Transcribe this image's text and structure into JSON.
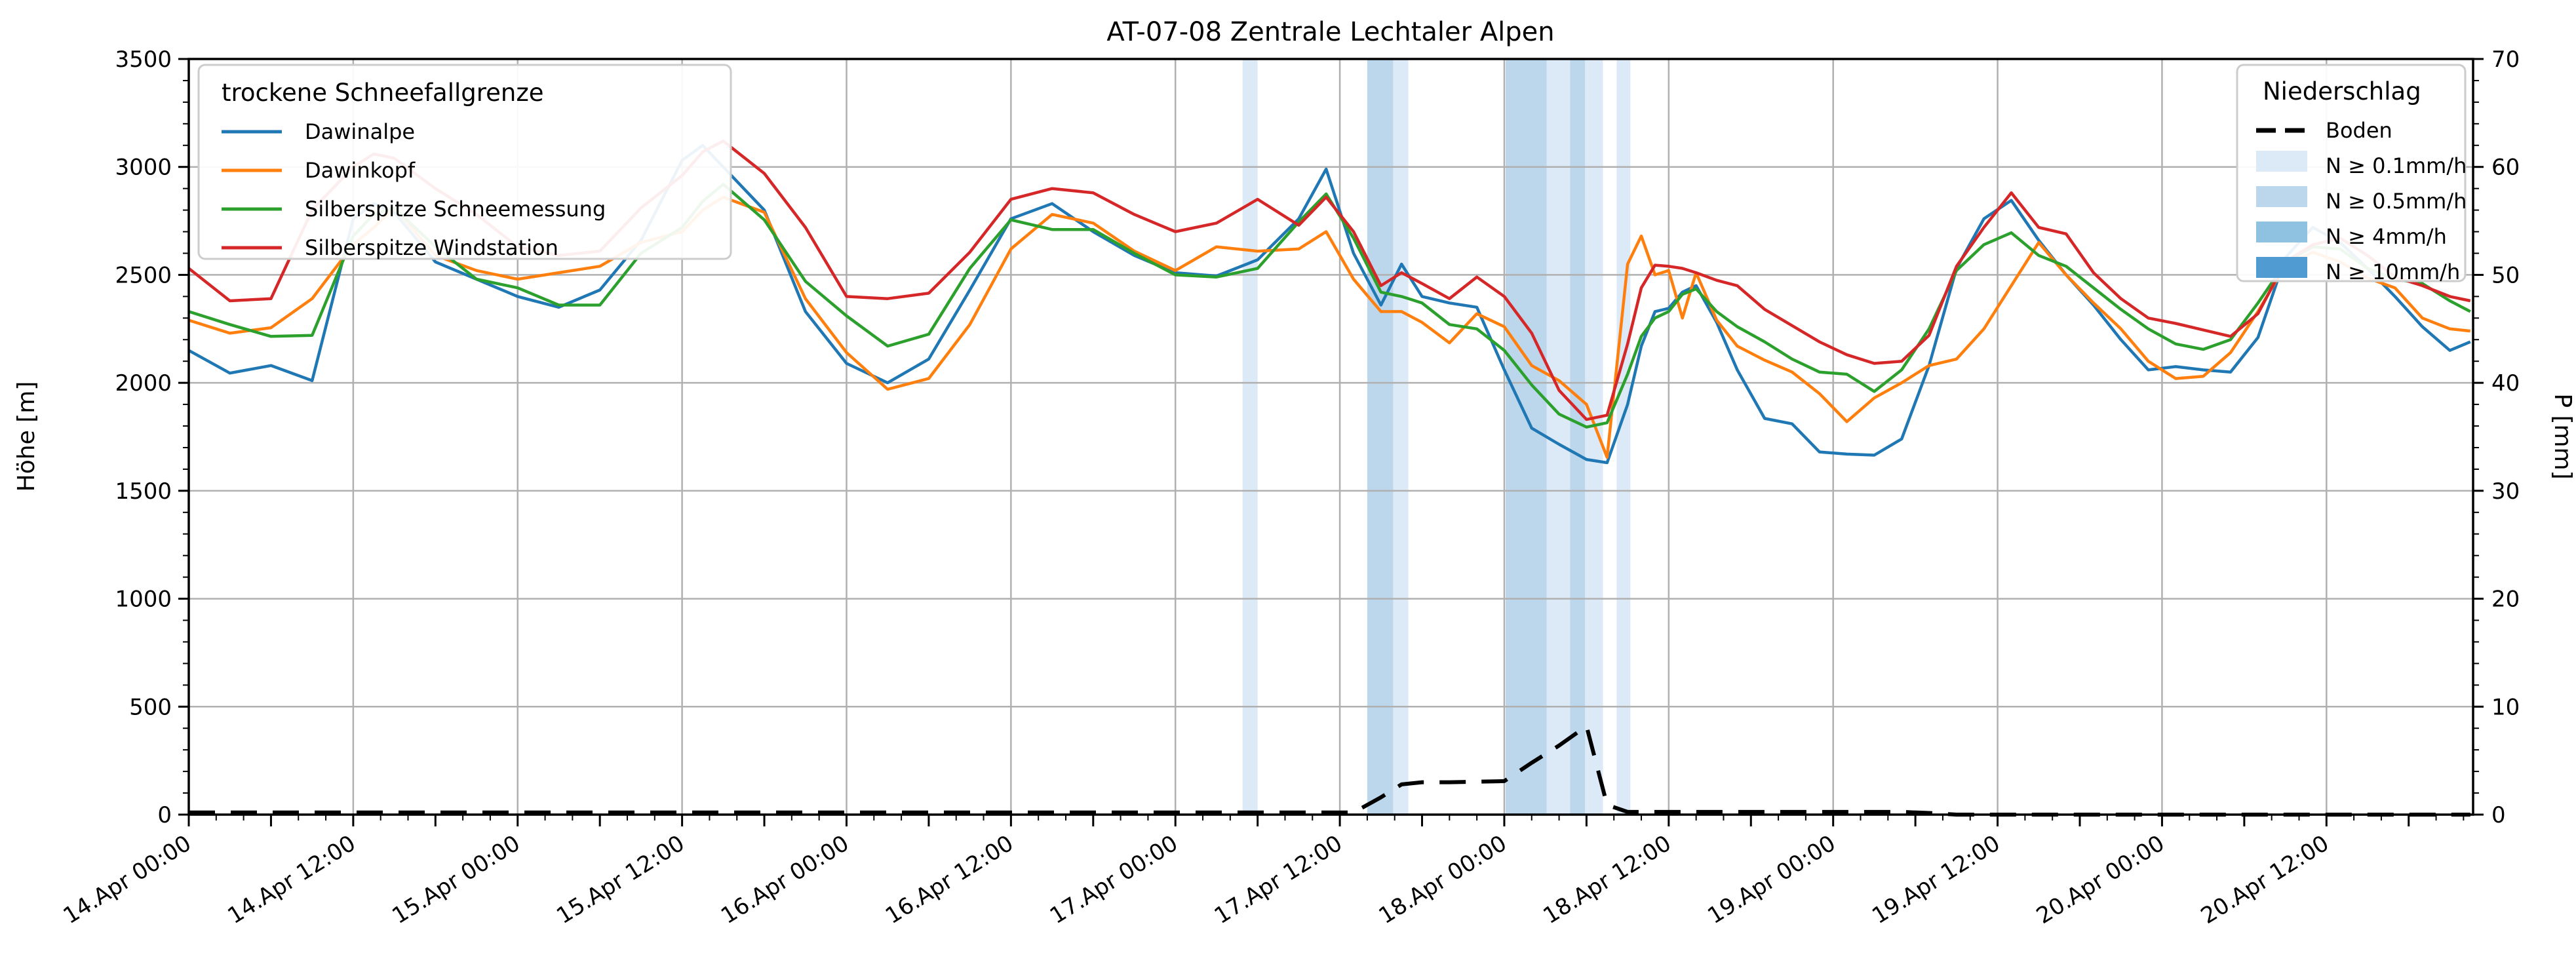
{
  "title": "AT-07-08 Zentrale Lechtaler Alpen",
  "legends": {
    "snowline": {
      "title": "trockene Schneefallgrenze",
      "items": [
        {
          "label": "Dawinalpe",
          "color": "#1f77b4"
        },
        {
          "label": "Dawinkopf",
          "color": "#ff7f0e"
        },
        {
          "label": "Silberspitze Schneemessung",
          "color": "#2ca02c"
        },
        {
          "label": "Silberspitze Windstation",
          "color": "#d62728"
        }
      ]
    },
    "precip": {
      "title": "Niederschlag",
      "items": [
        {
          "label": "Boden",
          "type": "dashed-line",
          "color": "#000000"
        },
        {
          "label": "N ≥ 0.1mm/h",
          "type": "patch",
          "color": "#dce9f6"
        },
        {
          "label": "N ≥ 0.5mm/h",
          "type": "patch",
          "color": "#bcd7ec"
        },
        {
          "label": "N ≥ 4mm/h",
          "type": "patch",
          "color": "#8fc2e0"
        },
        {
          "label": "N ≥ 10mm/h",
          "type": "patch",
          "color": "#4f9bd2"
        }
      ]
    }
  },
  "chart_data": {
    "type": "line",
    "title": "AT-07-08 Zentrale Lechtaler Alpen",
    "ylabel_left": "Höhe [m]",
    "ylabel_right": "P [mm]",
    "ylim_left": [
      0,
      3500
    ],
    "ylim_right": [
      0,
      70
    ],
    "xlim_hours": [
      0,
      166.7
    ],
    "grid": true,
    "x_unit": "hours since 14.Apr 00:00",
    "yticks_left": [
      0,
      500,
      1000,
      1500,
      2000,
      2500,
      3000,
      3500
    ],
    "yticks_right": [
      0,
      10,
      20,
      30,
      40,
      50,
      60,
      70
    ],
    "xticks": [
      {
        "t": 0,
        "label": "14.Apr 00:00"
      },
      {
        "t": 12,
        "label": "14.Apr 12:00"
      },
      {
        "t": 24,
        "label": "15.Apr 00:00"
      },
      {
        "t": 36,
        "label": "15.Apr 12:00"
      },
      {
        "t": 48,
        "label": "16.Apr 00:00"
      },
      {
        "t": 60,
        "label": "16.Apr 12:00"
      },
      {
        "t": 72,
        "label": "17.Apr 00:00"
      },
      {
        "t": 84,
        "label": "17.Apr 12:00"
      },
      {
        "t": 96,
        "label": "18.Apr 00:00"
      },
      {
        "t": 108,
        "label": "18.Apr 12:00"
      },
      {
        "t": 120,
        "label": "19.Apr 00:00"
      },
      {
        "t": 132,
        "label": "19.Apr 12:00"
      },
      {
        "t": 144,
        "label": "20.Apr 00:00"
      },
      {
        "t": 156,
        "label": "20.Apr 12:00"
      }
    ],
    "x": [
      0,
      3,
      6,
      9,
      12,
      13.5,
      15,
      18,
      21,
      24,
      27,
      30,
      33,
      36,
      37.5,
      39,
      42,
      45,
      48,
      51,
      54,
      57,
      60,
      63,
      66,
      69,
      72,
      75,
      78,
      81,
      83,
      85,
      87,
      88.5,
      90,
      92,
      94,
      96,
      98,
      100,
      102,
      103.5,
      105,
      106,
      107,
      108,
      109,
      110,
      111.5,
      113,
      115,
      117,
      119,
      121,
      123,
      125,
      127,
      129,
      131,
      133,
      135,
      137,
      139,
      141,
      143,
      145,
      147,
      149,
      151,
      153,
      155,
      157,
      159,
      161,
      163,
      165,
      166.5
    ],
    "series": [
      {
        "name": "Dawinalpe",
        "color": "#1f77b4",
        "axis": "left",
        "style": "solid",
        "values": [
          2150,
          2045,
          2080,
          2010,
          2760,
          2830,
          2790,
          2560,
          2480,
          2400,
          2350,
          2430,
          2660,
          3030,
          3100,
          3000,
          2800,
          2330,
          2090,
          2000,
          2110,
          2430,
          2760,
          2830,
          2700,
          2590,
          2510,
          2495,
          2570,
          2760,
          2990,
          2600,
          2360,
          2550,
          2400,
          2370,
          2350,
          2060,
          1790,
          1715,
          1645,
          1630,
          1900,
          2170,
          2330,
          2345,
          2420,
          2450,
          2280,
          2060,
          1835,
          1810,
          1680,
          1670,
          1665,
          1740,
          2080,
          2530,
          2760,
          2845,
          2660,
          2500,
          2360,
          2200,
          2060,
          2075,
          2060,
          2050,
          2210,
          2580,
          2720,
          2650,
          2530,
          2400,
          2260,
          2150,
          2190
        ]
      },
      {
        "name": "Dawinkopf",
        "color": "#ff7f0e",
        "axis": "left",
        "style": "solid",
        "values": [
          2290,
          2230,
          2255,
          2390,
          2640,
          2720,
          2810,
          2590,
          2520,
          2480,
          2510,
          2540,
          2650,
          2700,
          2800,
          2860,
          2790,
          2390,
          2140,
          1970,
          2020,
          2270,
          2620,
          2780,
          2740,
          2610,
          2520,
          2630,
          2610,
          2620,
          2700,
          2480,
          2330,
          2330,
          2280,
          2185,
          2320,
          2260,
          2080,
          2010,
          1900,
          1655,
          2550,
          2680,
          2500,
          2520,
          2300,
          2510,
          2290,
          2170,
          2105,
          2050,
          1950,
          1820,
          1930,
          2000,
          2080,
          2110,
          2250,
          2450,
          2650,
          2500,
          2370,
          2250,
          2100,
          2020,
          2030,
          2140,
          2330,
          2545,
          2605,
          2560,
          2485,
          2440,
          2300,
          2250,
          2240
        ]
      },
      {
        "name": "Silberspitze Schneemessung",
        "color": "#2ca02c",
        "axis": "left",
        "style": "solid",
        "values": [
          2330,
          2270,
          2215,
          2220,
          2680,
          2780,
          2810,
          2630,
          2480,
          2440,
          2360,
          2360,
          2600,
          2720,
          2840,
          2920,
          2755,
          2470,
          2310,
          2170,
          2225,
          2530,
          2755,
          2710,
          2710,
          2600,
          2500,
          2490,
          2530,
          2745,
          2875,
          2670,
          2420,
          2400,
          2370,
          2270,
          2250,
          2150,
          1990,
          1855,
          1795,
          1815,
          2040,
          2215,
          2300,
          2330,
          2410,
          2435,
          2330,
          2260,
          2190,
          2110,
          2050,
          2040,
          1960,
          2060,
          2250,
          2520,
          2640,
          2695,
          2590,
          2540,
          2440,
          2340,
          2250,
          2180,
          2155,
          2200,
          2370,
          2555,
          2630,
          2620,
          2530,
          2480,
          2460,
          2380,
          2330
        ]
      },
      {
        "name": "Silberspitze Windstation",
        "color": "#d62728",
        "axis": "left",
        "style": "solid",
        "values": [
          2530,
          2380,
          2390,
          2800,
          3000,
          3060,
          3040,
          2900,
          2780,
          2630,
          2590,
          2610,
          2810,
          2960,
          3070,
          3120,
          2970,
          2720,
          2400,
          2390,
          2415,
          2605,
          2850,
          2900,
          2880,
          2780,
          2700,
          2740,
          2850,
          2730,
          2860,
          2700,
          2450,
          2510,
          2460,
          2390,
          2490,
          2400,
          2230,
          1965,
          1830,
          1850,
          2180,
          2440,
          2545,
          2540,
          2530,
          2510,
          2475,
          2450,
          2340,
          2265,
          2190,
          2130,
          2090,
          2100,
          2220,
          2540,
          2720,
          2880,
          2720,
          2690,
          2510,
          2390,
          2300,
          2275,
          2245,
          2215,
          2320,
          2560,
          2640,
          2670,
          2590,
          2490,
          2450,
          2400,
          2380
        ]
      },
      {
        "name": "Boden",
        "color": "#000000",
        "axis": "right",
        "style": "dashed",
        "values": [
          0.2,
          0.2,
          0.2,
          0.2,
          0.2,
          0.2,
          0.2,
          0.2,
          0.2,
          0.2,
          0.2,
          0.2,
          0.2,
          0.2,
          0.2,
          0.2,
          0.2,
          0.2,
          0.2,
          0.2,
          0.2,
          0.2,
          0.2,
          0.2,
          0.2,
          0.2,
          0.2,
          0.2,
          0.2,
          0.2,
          0.2,
          0.2,
          1.6,
          2.8,
          3.0,
          3.0,
          3.05,
          3.1,
          4.8,
          6.4,
          8.2,
          0.9,
          0.25,
          0.25,
          0.25,
          0.25,
          0.25,
          0.25,
          0.25,
          0.25,
          0.25,
          0.25,
          0.25,
          0.25,
          0.25,
          0.25,
          0.15,
          0,
          0,
          0,
          0,
          0,
          0,
          0,
          0,
          0,
          0,
          0,
          0,
          0,
          0,
          0,
          0,
          0,
          0,
          0,
          0
        ]
      }
    ],
    "precip_bands": [
      {
        "t_start": 76.9,
        "t_end": 78.0,
        "level": "N ≥ 0.1mm/h"
      },
      {
        "t_start": 86.0,
        "t_end": 87.9,
        "level": "N ≥ 0.5mm/h"
      },
      {
        "t_start": 87.9,
        "t_end": 89.0,
        "level": "N ≥ 0.1mm/h"
      },
      {
        "t_start": 96.1,
        "t_end": 99.1,
        "level": "N ≥ 0.5mm/h"
      },
      {
        "t_start": 99.1,
        "t_end": 100.8,
        "level": "N ≥ 0.1mm/h"
      },
      {
        "t_start": 100.8,
        "t_end": 101.9,
        "level": "N ≥ 0.5mm/h"
      },
      {
        "t_start": 101.9,
        "t_end": 103.2,
        "level": "N ≥ 0.1mm/h"
      },
      {
        "t_start": 104.2,
        "t_end": 105.2,
        "level": "N ≥ 0.1mm/h"
      }
    ],
    "level_colors": {
      "N ≥ 0.1mm/h": "#dce9f6",
      "N ≥ 0.5mm/h": "#bcd7ec",
      "N ≥ 4mm/h": "#8fc2e0",
      "N ≥ 10mm/h": "#4f9bd2"
    },
    "colors": {
      "grid": "#b0b0b0",
      "spine": "#000000",
      "background": "#ffffff"
    }
  }
}
